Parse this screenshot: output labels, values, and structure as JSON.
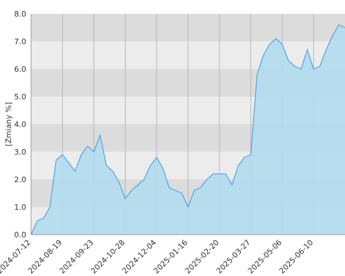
{
  "chart_data": {
    "type": "area",
    "y_label": "[Zmiany %]",
    "categories": [
      "2024-07-12",
      null,
      null,
      null,
      null,
      "2024-08-19",
      null,
      null,
      null,
      null,
      "2024-09-23",
      null,
      null,
      null,
      null,
      "2024-10-28",
      null,
      null,
      null,
      null,
      "2024-12-04",
      null,
      null,
      null,
      null,
      "2025-01-16",
      null,
      null,
      null,
      null,
      "2025-02-20",
      null,
      null,
      null,
      null,
      "2025-03-27",
      null,
      null,
      null,
      null,
      "2025-05-06",
      null,
      null,
      null,
      null,
      "2025-06-10",
      null,
      null,
      null,
      null,
      null
    ],
    "values": [
      0.0,
      0.5,
      0.6,
      1.0,
      2.7,
      2.9,
      2.6,
      2.3,
      2.9,
      3.2,
      3.0,
      3.6,
      2.5,
      2.3,
      1.9,
      1.3,
      1.6,
      1.8,
      2.0,
      2.5,
      2.8,
      2.4,
      1.7,
      1.6,
      1.5,
      1.0,
      1.6,
      1.7,
      2.0,
      2.2,
      2.2,
      2.2,
      1.8,
      2.5,
      2.8,
      2.9,
      5.8,
      6.5,
      6.9,
      7.1,
      6.9,
      6.3,
      6.1,
      6.0,
      6.7,
      6.0,
      6.1,
      6.7,
      7.2,
      7.6,
      7.5
    ],
    "color": "#4aa3e8",
    "fill": "#b3dcee",
    "ylim": [
      0,
      8
    ],
    "yticks": [
      {
        "value": 0,
        "label": "0.0"
      },
      {
        "value": 1,
        "label": "1.0"
      },
      {
        "value": 2,
        "label": "2.0"
      },
      {
        "value": 3,
        "label": "3.0"
      },
      {
        "value": 4,
        "label": "4.0"
      },
      {
        "value": 5,
        "label": "5.0"
      },
      {
        "value": 6,
        "label": "6.0"
      },
      {
        "value": 7,
        "label": "7.0"
      },
      {
        "value": 8,
        "label": "8.0"
      }
    ],
    "grid": true
  }
}
